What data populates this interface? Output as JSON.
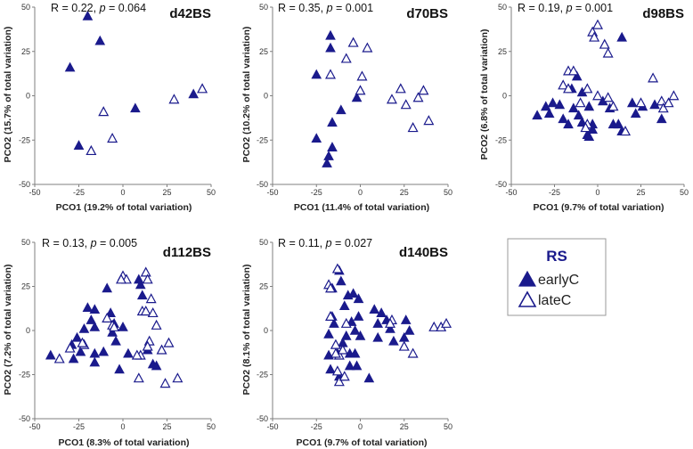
{
  "colors": {
    "marker": "#1a1a8c",
    "axis": "#7f7f7f",
    "legend_border": "#9a9a9a"
  },
  "legend": {
    "title": "RS",
    "entries": [
      {
        "label": "earlyC",
        "filled": true
      },
      {
        "label": "lateC",
        "filled": false
      }
    ]
  },
  "chart_data": [
    {
      "type": "scatter",
      "title": "d42BS",
      "stat": {
        "r": "R = 0.22, ",
        "p_symbol": "p",
        "p": " = 0.064"
      },
      "xlabel": "PCO1 (19.2% of total variation)",
      "ylabel": "PCO2 (15.7% of total variation)",
      "xlim": [
        -50,
        50
      ],
      "ylim": [
        -50,
        50
      ],
      "xticks": [
        -50,
        -25,
        0,
        25,
        50
      ],
      "yticks": [
        -50,
        -25,
        0,
        25,
        50
      ],
      "series": [
        {
          "name": "earlyC",
          "filled": true,
          "points": [
            [
              -20,
              45
            ],
            [
              -13,
              31
            ],
            [
              -30,
              16
            ],
            [
              -25,
              -28
            ],
            [
              7,
              -7
            ],
            [
              40,
              1
            ]
          ]
        },
        {
          "name": "lateC",
          "filled": false,
          "points": [
            [
              -11,
              -9
            ],
            [
              -6,
              -24
            ],
            [
              -18,
              -31
            ],
            [
              29,
              -2
            ],
            [
              45,
              4
            ]
          ]
        }
      ]
    },
    {
      "type": "scatter",
      "title": "d70BS",
      "stat": {
        "r": "R = 0.35, ",
        "p_symbol": "p",
        "p": " = 0.001"
      },
      "xlabel": "PCO1 (11.4% of total variation)",
      "ylabel": "PCO2 (10.2% of total variation)",
      "xlim": [
        -50,
        50
      ],
      "ylim": [
        -50,
        50
      ],
      "xticks": [
        -50,
        -25,
        0,
        25,
        50
      ],
      "yticks": [
        -50,
        -25,
        0,
        25,
        50
      ],
      "series": [
        {
          "name": "earlyC",
          "filled": true,
          "points": [
            [
              -17,
              34
            ],
            [
              -17,
              27
            ],
            [
              -25,
              12
            ],
            [
              -11,
              -8
            ],
            [
              -2,
              -1
            ],
            [
              -16,
              -15
            ],
            [
              -25,
              -24
            ],
            [
              -18,
              -34
            ],
            [
              -16,
              -29
            ],
            [
              -19,
              -38
            ]
          ]
        },
        {
          "name": "lateC",
          "filled": false,
          "points": [
            [
              -4,
              30
            ],
            [
              4,
              27
            ],
            [
              -8,
              21
            ],
            [
              -17,
              12
            ],
            [
              1,
              11
            ],
            [
              0,
              3
            ],
            [
              18,
              -2
            ],
            [
              23,
              4
            ],
            [
              26,
              -5
            ],
            [
              33,
              -1
            ],
            [
              36,
              3
            ],
            [
              30,
              -18
            ],
            [
              39,
              -14
            ]
          ]
        }
      ]
    },
    {
      "type": "scatter",
      "title": "d98BS",
      "stat": {
        "r": "R = 0.19, ",
        "p_symbol": "p",
        "p": " = 0.001"
      },
      "xlabel": "PCO1 (9.7% of total variation)",
      "ylabel": "PCO2 (6.8% of total variation)",
      "xlim": [
        -50,
        50
      ],
      "ylim": [
        -50,
        50
      ],
      "xticks": [
        -50,
        -25,
        0,
        25,
        50
      ],
      "yticks": [
        -50,
        -25,
        0,
        25,
        50
      ],
      "series": [
        {
          "name": "earlyC",
          "filled": true,
          "points": [
            [
              14,
              33
            ],
            [
              -12,
              11
            ],
            [
              -15,
              4
            ],
            [
              -9,
              2
            ],
            [
              -22,
              -5
            ],
            [
              -26,
              -4
            ],
            [
              -30,
              -6
            ],
            [
              -28,
              -10
            ],
            [
              -35,
              -11
            ],
            [
              -20,
              -13
            ],
            [
              -14,
              -7
            ],
            [
              -11,
              -11
            ],
            [
              -5,
              -6
            ],
            [
              -3,
              -16
            ],
            [
              -9,
              -15
            ],
            [
              -17,
              -16
            ],
            [
              3,
              -3
            ],
            [
              7,
              -7
            ],
            [
              9,
              -16
            ],
            [
              12,
              -16
            ],
            [
              14,
              -20
            ],
            [
              -3,
              -19
            ],
            [
              -6,
              -22
            ],
            [
              -5,
              -23
            ],
            [
              20,
              -4
            ],
            [
              26,
              -6
            ],
            [
              33,
              -5
            ],
            [
              22,
              -10
            ],
            [
              37,
              -13
            ]
          ]
        },
        {
          "name": "lateC",
          "filled": false,
          "points": [
            [
              0,
              40
            ],
            [
              -3,
              36
            ],
            [
              -2,
              33
            ],
            [
              4,
              29
            ],
            [
              6,
              24
            ],
            [
              -17,
              14
            ],
            [
              -14,
              14
            ],
            [
              -20,
              6
            ],
            [
              -17,
              4
            ],
            [
              -6,
              4
            ],
            [
              -10,
              -4
            ],
            [
              0,
              0
            ],
            [
              6,
              -1
            ],
            [
              9,
              -6
            ],
            [
              -6,
              -16
            ],
            [
              -7,
              -18
            ],
            [
              16,
              -20
            ],
            [
              25,
              -4
            ],
            [
              37,
              -3
            ],
            [
              38,
              -7
            ],
            [
              41,
              -4
            ],
            [
              44,
              0
            ],
            [
              32,
              10
            ]
          ]
        }
      ]
    },
    {
      "type": "scatter",
      "title": "d112BS",
      "stat": {
        "r": "R = 0.13, ",
        "p_symbol": "p",
        "p": " = 0.005"
      },
      "xlabel": "PCO1 (8.3% of total variation)",
      "ylabel": "PCO2 (7.2% of total variation)",
      "xlim": [
        -50,
        50
      ],
      "ylim": [
        -50,
        50
      ],
      "xticks": [
        -50,
        -25,
        0,
        25,
        50
      ],
      "yticks": [
        -50,
        -25,
        0,
        25,
        50
      ],
      "series": [
        {
          "name": "earlyC",
          "filled": true,
          "points": [
            [
              9,
              29
            ],
            [
              10,
              26
            ],
            [
              -9,
              24
            ],
            [
              11,
              20
            ],
            [
              -7,
              10
            ],
            [
              -20,
              13
            ],
            [
              -16,
              12
            ],
            [
              -18,
              6
            ],
            [
              -16,
              2
            ],
            [
              -22,
              1
            ],
            [
              -26,
              -4
            ],
            [
              -29,
              -8
            ],
            [
              -41,
              -14
            ],
            [
              -16,
              -13
            ],
            [
              -24,
              -12
            ],
            [
              -28,
              -16
            ],
            [
              -11,
              -12
            ],
            [
              -16,
              -18
            ],
            [
              -5,
              4
            ],
            [
              0,
              2
            ],
            [
              -6,
              -1
            ],
            [
              -4,
              -6
            ],
            [
              3,
              -13
            ],
            [
              14,
              -11
            ],
            [
              17,
              -19
            ],
            [
              19,
              -20
            ],
            [
              -2,
              -22
            ]
          ]
        },
        {
          "name": "lateC",
          "filled": false,
          "points": [
            [
              0,
              31
            ],
            [
              2,
              29
            ],
            [
              13,
              33
            ],
            [
              14,
              29
            ],
            [
              -6,
              3
            ],
            [
              -9,
              7
            ],
            [
              16,
              18
            ],
            [
              11,
              11
            ],
            [
              13,
              11
            ],
            [
              17,
              10
            ],
            [
              19,
              3
            ],
            [
              15,
              -6
            ],
            [
              14,
              -9
            ],
            [
              26,
              -7
            ],
            [
              22,
              -11
            ],
            [
              10,
              -14
            ],
            [
              8,
              -14
            ],
            [
              -22,
              -8
            ],
            [
              -23,
              -7
            ],
            [
              -36,
              -16
            ],
            [
              -30,
              -10
            ],
            [
              9,
              -27
            ],
            [
              24,
              -30
            ],
            [
              31,
              -27
            ],
            [
              -1,
              29
            ],
            [
              -5,
              2
            ]
          ]
        }
      ]
    },
    {
      "type": "scatter",
      "title": "d140BS",
      "stat": {
        "r": "R = 0.11, ",
        "p_symbol": "p",
        "p": " = 0.027"
      },
      "xlabel": "PCO1 (9.7% of total variation)",
      "ylabel": "PCO2 (8.1% of total variation)",
      "xlim": [
        -50,
        50
      ],
      "ylim": [
        -50,
        50
      ],
      "xticks": [
        -50,
        -25,
        0,
        25,
        50
      ],
      "yticks": [
        -50,
        -25,
        0,
        25,
        50
      ],
      "series": [
        {
          "name": "earlyC",
          "filled": true,
          "points": [
            [
              -12,
              34
            ],
            [
              -11,
              28
            ],
            [
              -16,
              24
            ],
            [
              -4,
              21
            ],
            [
              -7,
              20
            ],
            [
              -1,
              18
            ],
            [
              -16,
              8
            ],
            [
              -15,
              4
            ],
            [
              -9,
              14
            ],
            [
              -8,
              -3
            ],
            [
              -5,
              5
            ],
            [
              -1,
              8
            ],
            [
              -3,
              0
            ],
            [
              0,
              -3
            ],
            [
              8,
              12
            ],
            [
              12,
              10
            ],
            [
              15,
              6
            ],
            [
              10,
              4
            ],
            [
              17,
              1
            ],
            [
              19,
              -6
            ],
            [
              26,
              6
            ],
            [
              28,
              0
            ],
            [
              25,
              -4
            ],
            [
              10,
              -4
            ],
            [
              -18,
              -2
            ],
            [
              -18,
              -14
            ],
            [
              -10,
              -7
            ],
            [
              -13,
              -13
            ],
            [
              -6,
              -13
            ],
            [
              -3,
              -13
            ],
            [
              -6,
              -20
            ],
            [
              -12,
              -26
            ],
            [
              -17,
              -22
            ],
            [
              -2,
              -20
            ],
            [
              5,
              -27
            ]
          ]
        },
        {
          "name": "lateC",
          "filled": false,
          "points": [
            [
              -13,
              35
            ],
            [
              -18,
              26
            ],
            [
              -17,
              24
            ],
            [
              -17,
              8
            ],
            [
              -8,
              4
            ],
            [
              18,
              6
            ],
            [
              17,
              4
            ],
            [
              -14,
              -8
            ],
            [
              -12,
              -14
            ],
            [
              -13,
              -23
            ],
            [
              -12,
              -29
            ],
            [
              -9,
              -26
            ],
            [
              -14,
              -13
            ],
            [
              -10,
              -11
            ],
            [
              30,
              -13
            ],
            [
              25,
              -9
            ],
            [
              42,
              2
            ],
            [
              46,
              2
            ],
            [
              49,
              4
            ]
          ]
        }
      ]
    }
  ]
}
